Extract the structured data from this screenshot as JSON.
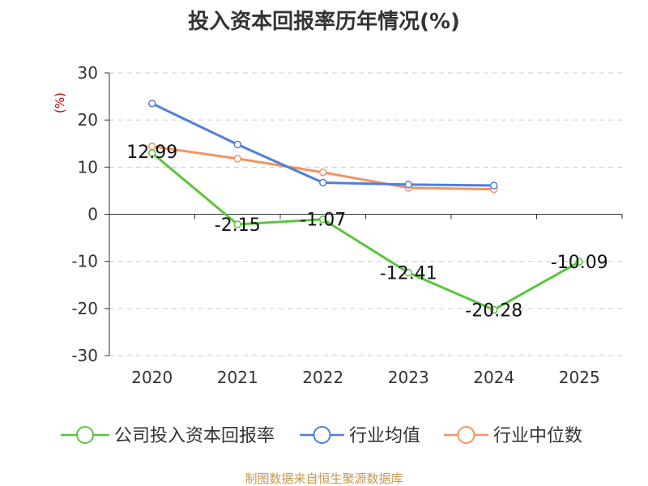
{
  "chart_data": {
    "type": "line",
    "title": "投入资本回报率历年情况(%)",
    "ylabel": "(%)",
    "xlabel": "",
    "categories": [
      "2020",
      "2021",
      "2022",
      "2023",
      "2024",
      "2025"
    ],
    "ylim": [
      -30,
      30
    ],
    "yticks": [
      30,
      20,
      10,
      0,
      -10,
      -20,
      -30
    ],
    "grid": true,
    "legend_position": "bottom",
    "series": [
      {
        "name": "公司投入资本回报率",
        "color": "#5ac63c",
        "values": [
          12.99,
          -2.15,
          -1.07,
          -12.41,
          -20.28,
          -10.09
        ],
        "labels": [
          "12.99",
          "-2.15",
          "-1.07",
          "-12.41",
          "-20.28",
          "-10.09"
        ]
      },
      {
        "name": "行业均值",
        "color": "#4e7fdc",
        "values": [
          23.5,
          14.8,
          6.7,
          6.3,
          6.1,
          null
        ]
      },
      {
        "name": "行业中位数",
        "color": "#f59362",
        "values": [
          14.4,
          11.8,
          8.9,
          5.6,
          5.3,
          null
        ]
      }
    ],
    "source": "制图数据来自恒生聚源数据库"
  }
}
